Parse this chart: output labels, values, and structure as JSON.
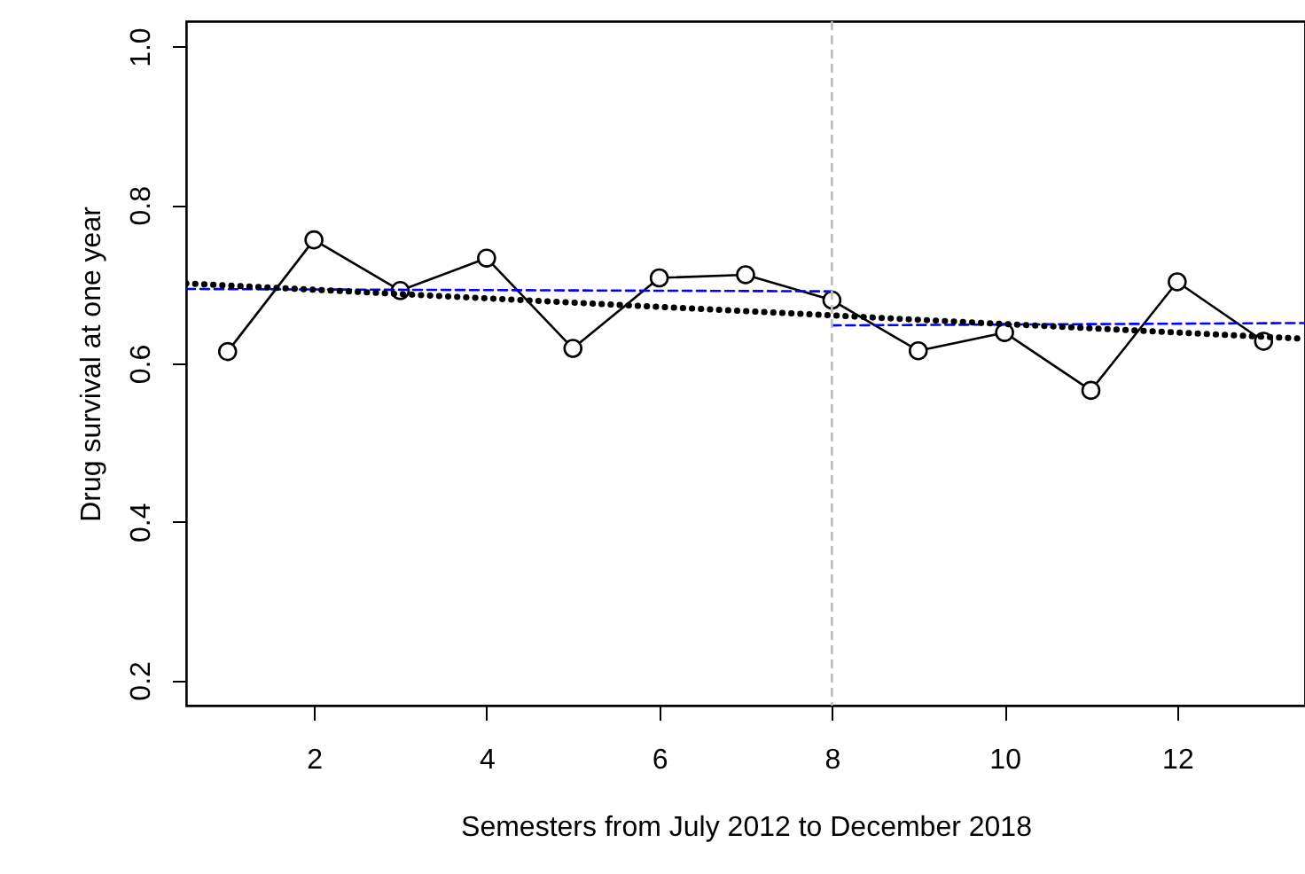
{
  "chart_data": {
    "type": "line",
    "xlabel": "Semesters from July 2012 to December 2018",
    "ylabel": "Drug survival at one year",
    "x": [
      1,
      2,
      3,
      4,
      5,
      6,
      7,
      8,
      9,
      10,
      11,
      12,
      13
    ],
    "series": [
      {
        "color": "#000000",
        "marker": "circle",
        "line_style": "solid",
        "values": [
          0.615,
          0.756,
          0.692,
          0.733,
          0.619,
          0.708,
          0.712,
          0.68,
          0.616,
          0.639,
          0.566,
          0.703,
          0.628
        ]
      },
      {
        "color": "#0000ff",
        "marker": "none",
        "line_style": "dashed",
        "x": [
          0.52,
          8
        ],
        "values": [
          0.694,
          0.691
        ]
      },
      {
        "color": "#0000ff",
        "marker": "none",
        "line_style": "dashed",
        "x": [
          8,
          13.48
        ],
        "values": [
          0.648,
          0.651
        ]
      },
      {
        "color": "#000000",
        "marker": "none",
        "line_style": "dotted",
        "x": [
          0.52,
          13.48
        ],
        "values": [
          0.701,
          0.631
        ]
      }
    ],
    "ref_lines": [
      {
        "axis": "x",
        "value": 8,
        "color": "#bebebe",
        "line_style": "dashed"
      }
    ],
    "xlim": [
      0.52,
      13.48
    ],
    "ylim": [
      0.168,
      1.032
    ],
    "xticks": [
      2,
      4,
      6,
      8,
      10,
      12
    ],
    "yticks": [
      0.2,
      0.4,
      0.6,
      0.8,
      {
        "value": 1,
        "label": "1.0"
      }
    ],
    "grid": false
  }
}
